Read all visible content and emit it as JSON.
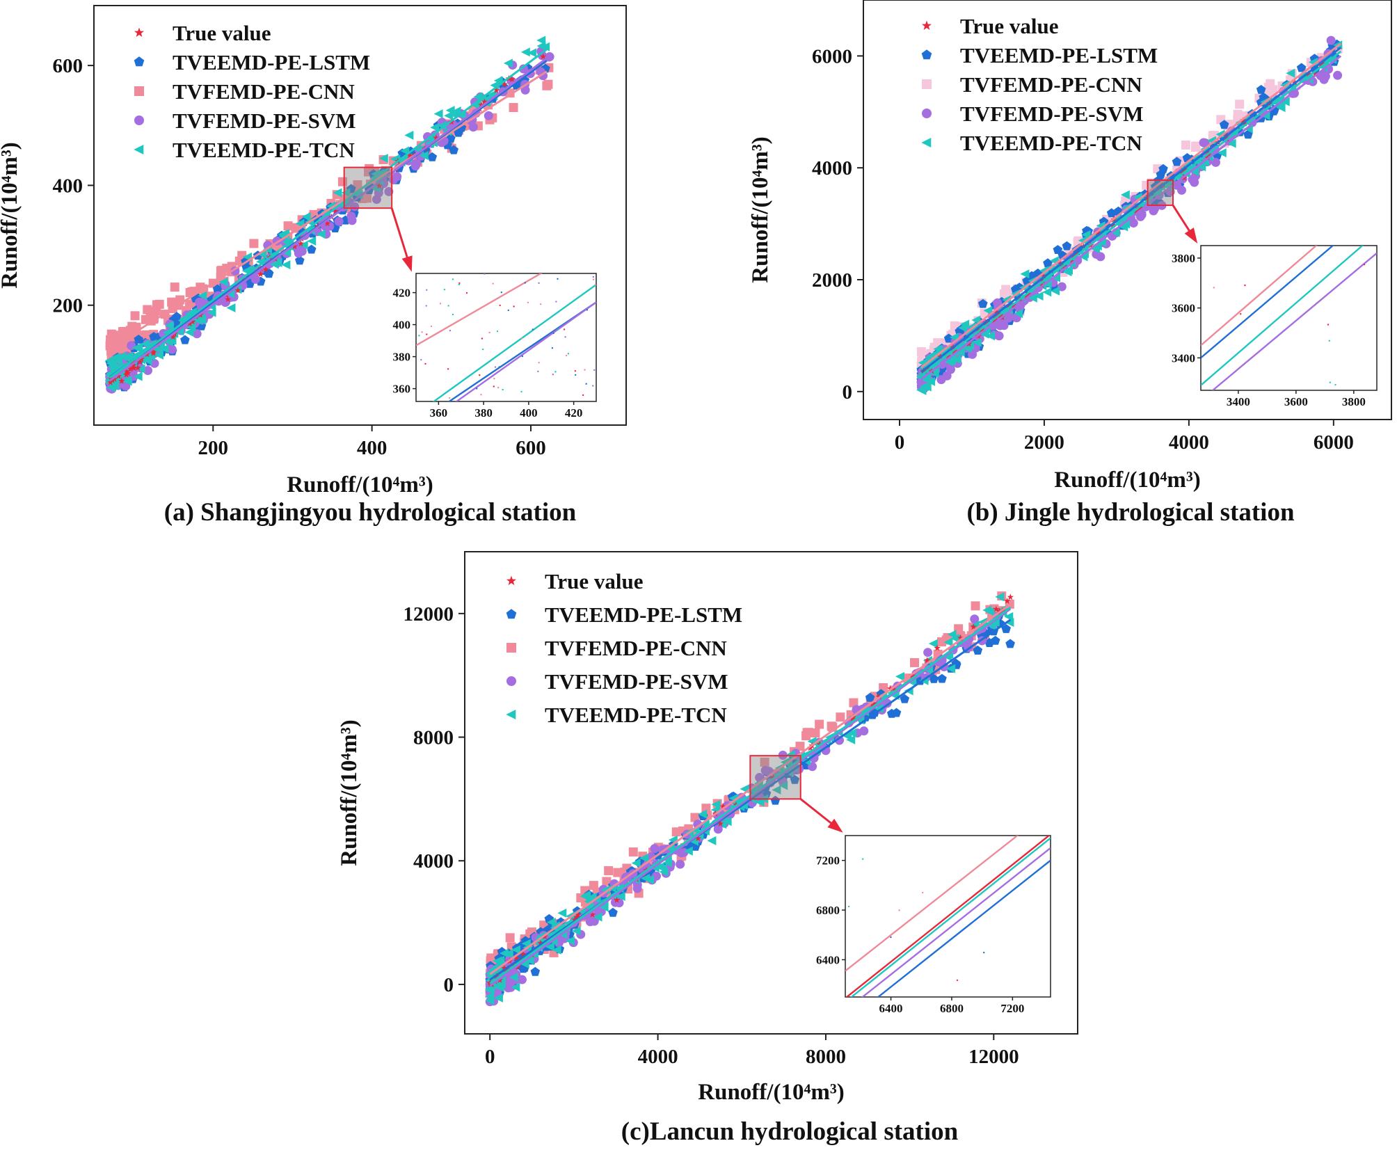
{
  "colors": {
    "true_value": "#e8283a",
    "lstm": "#1f6fd6",
    "cnn": "#f08a9a",
    "cnn_b": "#f5c6dc",
    "svm": "#a56ee0",
    "tcn": "#1fc7c0"
  },
  "chart_data": [
    {
      "type": "scatter",
      "panel": "a",
      "caption": "(a) Shangjingyou hydrological station",
      "xlabel": "Runoff/(10⁴m³)",
      "ylabel": "Runoff/(10⁴m³)",
      "xlim": [
        50,
        720
      ],
      "ylim": [
        0,
        700
      ],
      "xticks": [
        200,
        400,
        600
      ],
      "yticks": [
        200,
        400,
        600
      ],
      "legend": [
        "True value",
        "TVEEMD-PE-LSTM",
        "TVFEMD-PE-CNN",
        "TVFEMD-PE-SVM",
        "TVEEMD-PE-TCN"
      ],
      "legend_position": "top-left",
      "fit_lines": [
        {
          "name": "TVFEMD-PE-CNN",
          "x": [
            70,
            620
          ],
          "y": [
            128,
            590
          ]
        },
        {
          "name": "TVEEMD-PE-LSTM",
          "x": [
            70,
            620
          ],
          "y": [
            80,
            608
          ]
        },
        {
          "name": "TVFEMD-PE-SVM",
          "x": [
            70,
            620
          ],
          "y": [
            74,
            612
          ]
        },
        {
          "name": "TVEEMD-PE-TCN",
          "x": [
            70,
            620
          ],
          "y": [
            79,
            627
          ]
        }
      ],
      "data_range": [
        70,
        625
      ],
      "zoom_box": {
        "xlim": [
          365,
          425
        ],
        "ylim": [
          362,
          430
        ]
      },
      "inset": {
        "xlim": [
          350,
          430
        ],
        "ylim": [
          352,
          432
        ],
        "xticks": [
          360,
          380,
          400,
          420
        ],
        "yticks": [
          360,
          380,
          400,
          420
        ],
        "fit_lines": [
          {
            "name": "TVFEMD-PE-CNN",
            "x": [
              350,
              430
            ],
            "y": [
              387,
              452
            ]
          },
          {
            "name": "TVEEMD-PE-LSTM",
            "x": [
              350,
              430
            ],
            "y": [
              338,
              414
            ]
          },
          {
            "name": "TVFEMD-PE-SVM",
            "x": [
              350,
              430
            ],
            "y": [
              334,
              414
            ]
          },
          {
            "name": "TVEEMD-PE-TCN",
            "x": [
              350,
              430
            ],
            "y": [
              344,
              425
            ]
          }
        ]
      }
    },
    {
      "type": "scatter",
      "panel": "b",
      "caption": "(b) Jingle hydrological station",
      "xlabel": "Runoff/(10⁴m³)",
      "ylabel": "Runoff/(10⁴m³)",
      "xlim": [
        -500,
        6800
      ],
      "ylim": [
        -500,
        7000
      ],
      "xticks": [
        0,
        2000,
        4000,
        6000
      ],
      "yticks": [
        0,
        2000,
        4000,
        6000
      ],
      "legend": [
        "True value",
        "TVEEMD-PE-LSTM",
        "TVFEMD-PE-CNN",
        "TVFEMD-PE-SVM",
        "TVEEMD-PE-TCN"
      ],
      "legend_position": "top-left",
      "fit_lines": [
        {
          "name": "TVFEMD-PE-CNN",
          "x": [
            300,
            6100
          ],
          "y": [
            430,
            6220
          ]
        },
        {
          "name": "TVEEMD-PE-LSTM",
          "x": [
            300,
            6100
          ],
          "y": [
            350,
            6150
          ]
        },
        {
          "name": "TVFEMD-PE-SVM",
          "x": [
            300,
            6100
          ],
          "y": [
            220,
            6000
          ]
        },
        {
          "name": "TVEEMD-PE-TCN",
          "x": [
            300,
            6100
          ],
          "y": [
            290,
            6080
          ]
        }
      ],
      "data_range": [
        300,
        6100
      ],
      "zoom_box": {
        "xlim": [
          3430,
          3780
        ],
        "ylim": [
          3330,
          3780
        ]
      },
      "inset": {
        "xlim": [
          3270,
          3880
        ],
        "ylim": [
          3270,
          3850
        ],
        "xticks": [
          3400,
          3600,
          3800
        ],
        "yticks": [
          3400,
          3600,
          3800
        ],
        "fit_lines": [
          {
            "name": "TVFEMD-PE-CNN",
            "x": [
              3270,
              3880
            ],
            "y": [
              3450,
              4060
            ]
          },
          {
            "name": "TVEEMD-PE-LSTM",
            "x": [
              3270,
              3880
            ],
            "y": [
              3400,
              4000
            ]
          },
          {
            "name": "TVFEMD-PE-SVM",
            "x": [
              3270,
              3880
            ],
            "y": [
              3230,
              3820
            ]
          },
          {
            "name": "TVEEMD-PE-TCN",
            "x": [
              3270,
              3880
            ],
            "y": [
              3290,
              3900
            ]
          }
        ]
      }
    },
    {
      "type": "scatter",
      "panel": "c",
      "caption": "(c)Lancun hydrological station",
      "xlabel": "Runoff/(10⁴m³)",
      "ylabel": "Runoff/(10⁴m³)",
      "xlim": [
        -600,
        14000
      ],
      "ylim": [
        -1600,
        14000
      ],
      "xticks": [
        0,
        4000,
        8000,
        12000
      ],
      "yticks": [
        0,
        4000,
        8000,
        12000
      ],
      "legend": [
        "True value",
        "TVEEMD-PE-LSTM",
        "TVFEMD-PE-CNN",
        "TVFEMD-PE-SVM",
        "TVEEMD-PE-TCN"
      ],
      "legend_position": "top-left",
      "fit_lines": [
        {
          "name": "TVFEMD-PE-CNN",
          "x": [
            0,
            12400
          ],
          "y": [
            330,
            12300
          ]
        },
        {
          "name": "TVEEMD-PE-LSTM",
          "x": [
            0,
            12400
          ],
          "y": [
            150,
            11800
          ]
        },
        {
          "name": "TVFEMD-PE-SVM",
          "x": [
            0,
            12400
          ],
          "y": [
            -50,
            12150
          ]
        },
        {
          "name": "TVEEMD-PE-TCN",
          "x": [
            0,
            12400
          ],
          "y": [
            30,
            12200
          ]
        }
      ],
      "data_range": [
        0,
        12400
      ],
      "zoom_box": {
        "xlim": [
          6200,
          7400
        ],
        "ylim": [
          6000,
          7400
        ]
      },
      "inset": {
        "xlim": [
          6100,
          7450
        ],
        "ylim": [
          6100,
          7400
        ],
        "xticks": [
          6400,
          6800,
          7200
        ],
        "yticks": [
          6400,
          6800,
          7200
        ],
        "fit_lines": [
          {
            "name": "TVFEMD-PE-CNN",
            "x": [
              6100,
              7450
            ],
            "y": [
              6310,
              7610
            ]
          },
          {
            "name": "True value",
            "x": [
              6100,
              7450
            ],
            "y": [
              6090,
              7410
            ]
          },
          {
            "name": "TVEEMD-PE-TCN",
            "x": [
              6100,
              7450
            ],
            "y": [
              6060,
              7380
            ]
          },
          {
            "name": "TVFEMD-PE-SVM",
            "x": [
              6100,
              7450
            ],
            "y": [
              5990,
              7300
            ]
          },
          {
            "name": "TVEEMD-PE-LSTM",
            "x": [
              6100,
              7450
            ],
            "y": [
              5890,
              7200
            ]
          }
        ]
      }
    }
  ]
}
